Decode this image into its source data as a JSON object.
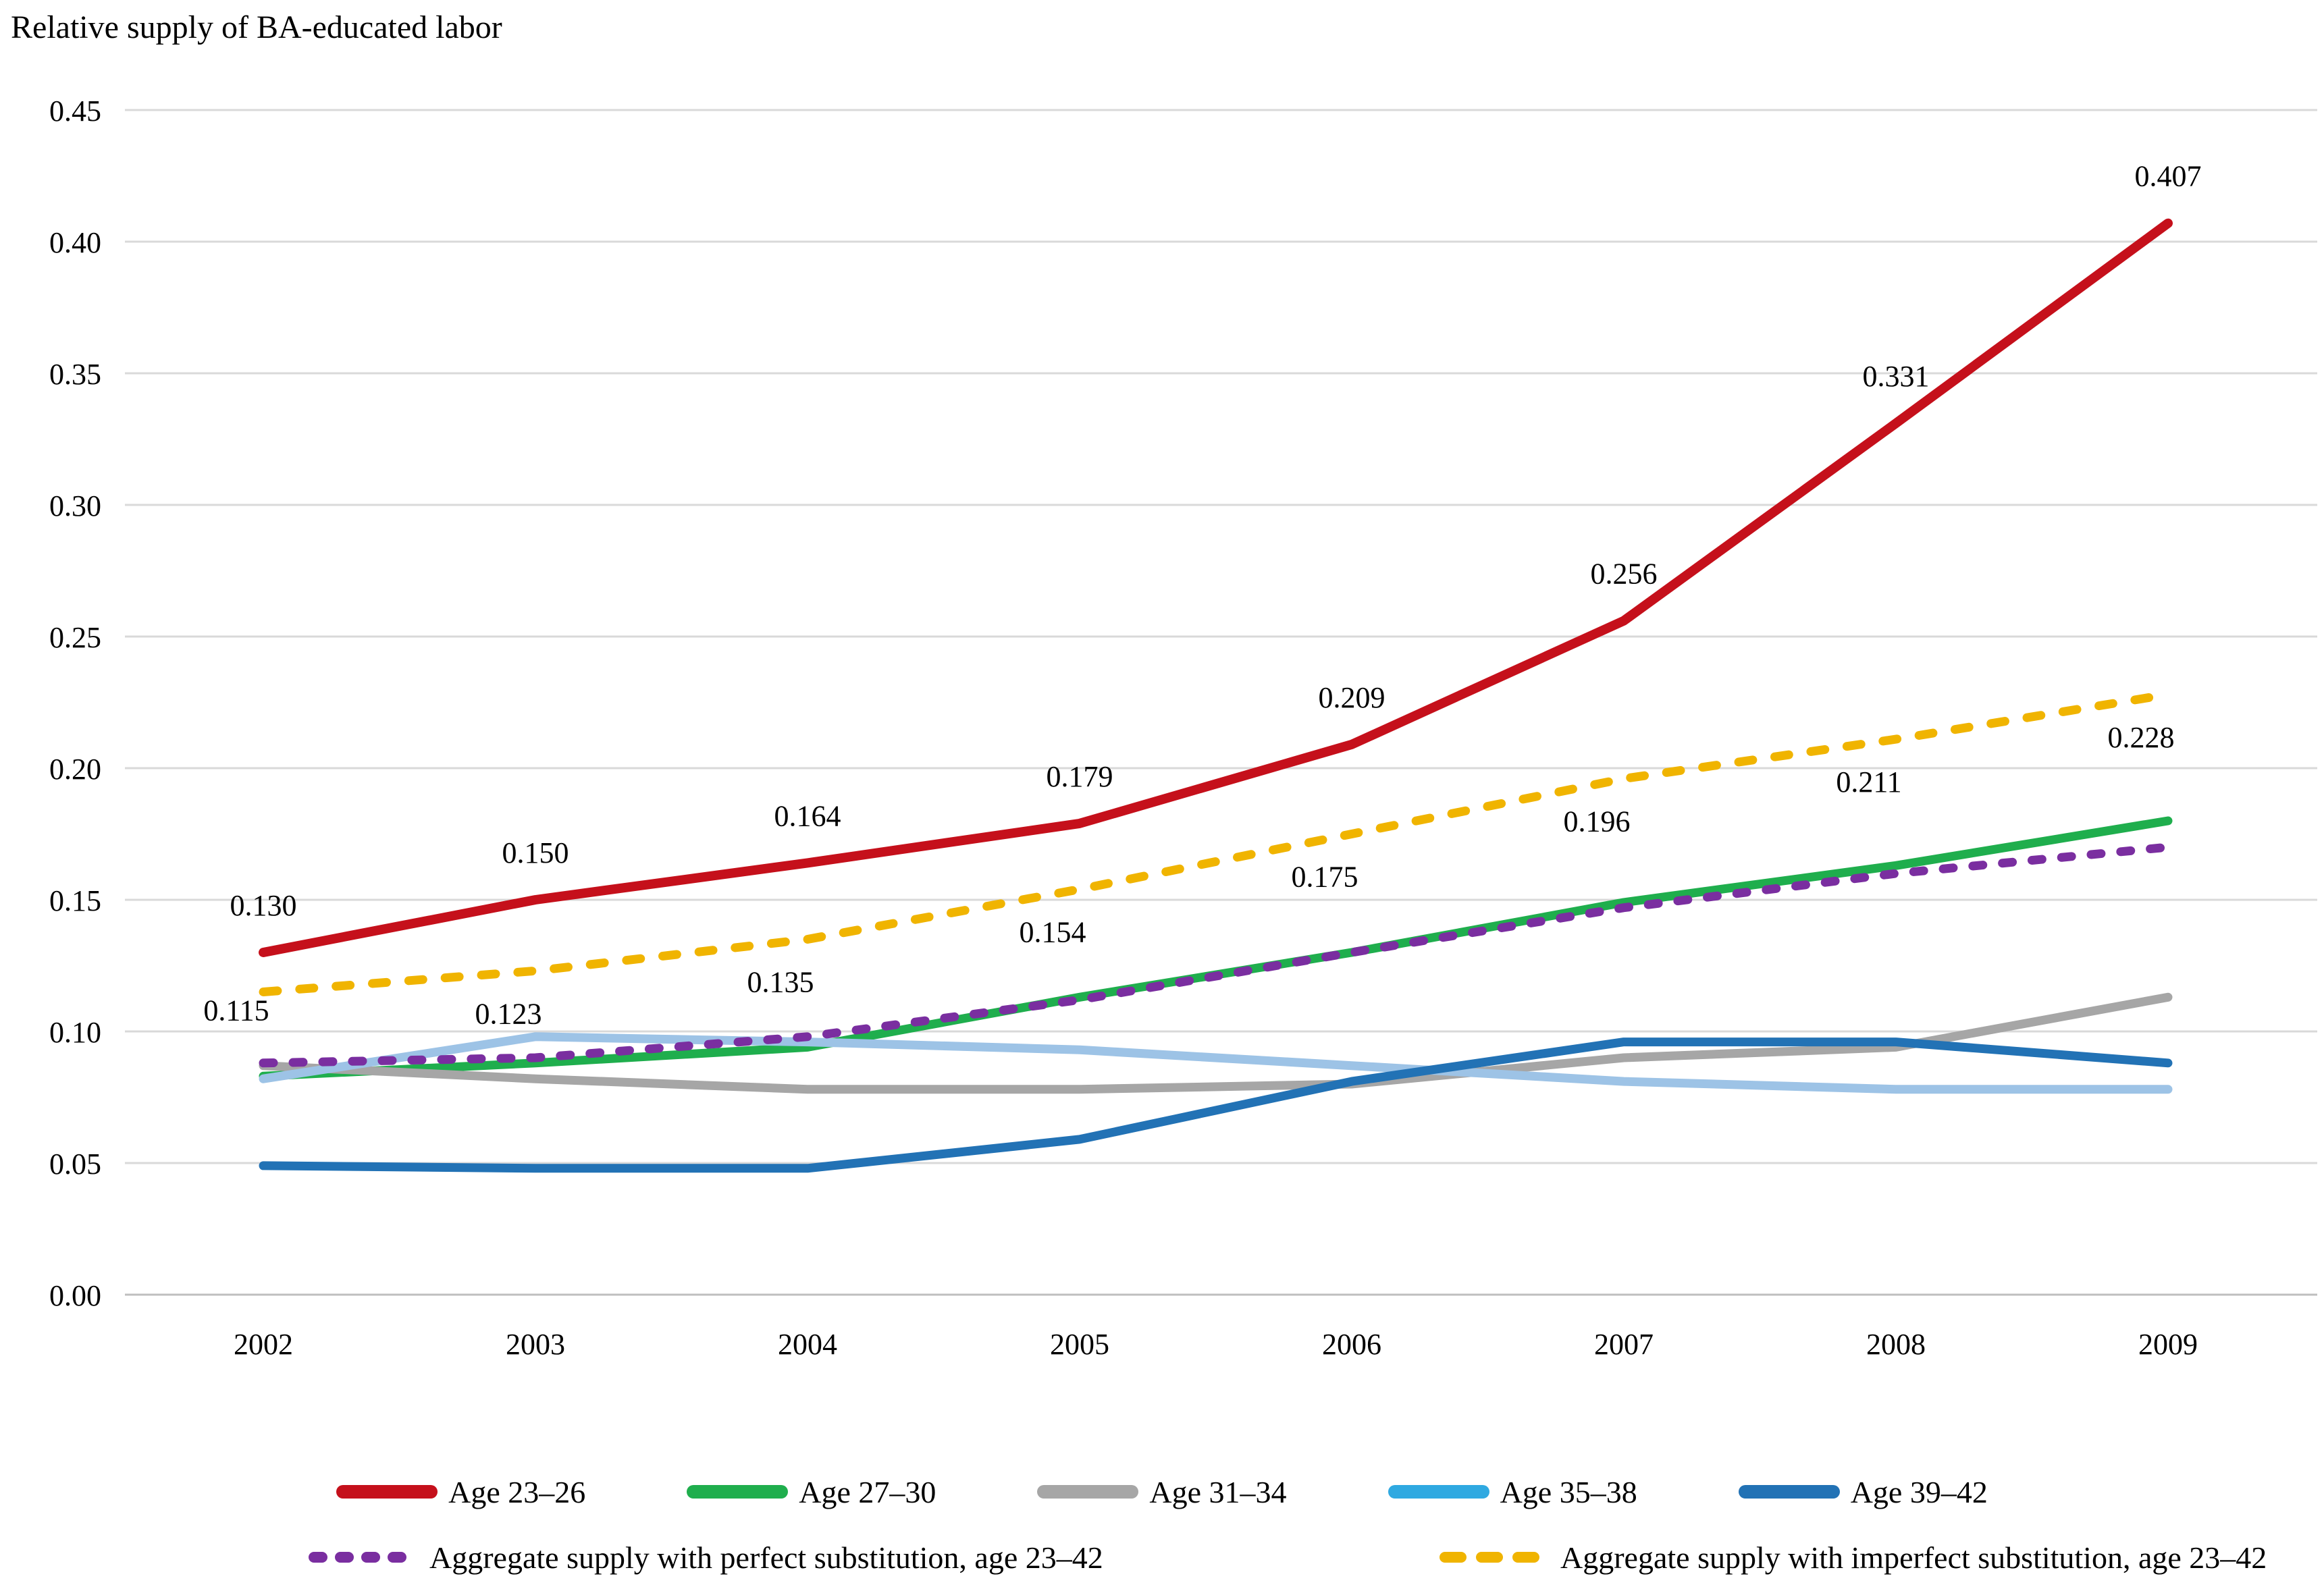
{
  "page": {
    "title": "Relative supply of BA-educated labor"
  },
  "chart_data": {
    "type": "line",
    "title": "Relative supply of BA-educated labor",
    "x": [
      2002,
      2003,
      2004,
      2005,
      2006,
      2007,
      2008,
      2009
    ],
    "categories": [
      "2002",
      "2003",
      "2004",
      "2005",
      "2006",
      "2007",
      "2008",
      "2009"
    ],
    "ylim": [
      0,
      0.45
    ],
    "y_tick_step": 0.05,
    "y_ticks": [
      "0.00",
      "0.05",
      "0.10",
      "0.15",
      "0.20",
      "0.25",
      "0.30",
      "0.35",
      "0.40",
      "0.45"
    ],
    "grid": true,
    "gridline_color": "#D9D9D9",
    "axis_line_color": "#BFBFBF",
    "legend_position": "bottom",
    "series": [
      {
        "name": "Age 23–26",
        "color": "#C5101B",
        "line_style": "solid",
        "values": [
          0.13,
          0.15,
          0.164,
          0.179,
          0.209,
          0.256,
          0.331,
          0.407
        ],
        "data_labels": [
          "0.130",
          "0.150",
          "0.164",
          "0.179",
          "0.209",
          "0.256",
          "0.331",
          "0.407"
        ],
        "label_position": "above"
      },
      {
        "name": "Age 27–30",
        "color": "#1FAE4D",
        "line_style": "solid",
        "values": [
          0.083,
          0.088,
          0.094,
          0.113,
          0.13,
          0.149,
          0.163,
          0.18
        ]
      },
      {
        "name": "Age 31–34",
        "color": "#A6A6A6",
        "line_style": "solid",
        "values": [
          0.087,
          0.082,
          0.078,
          0.078,
          0.08,
          0.09,
          0.094,
          0.113
        ]
      },
      {
        "name": "Age 35–38",
        "color": "#9DC3E6",
        "legend_color": "#2FA9E1",
        "line_style": "solid",
        "values": [
          0.082,
          0.098,
          0.096,
          0.093,
          0.087,
          0.081,
          0.078,
          0.078
        ]
      },
      {
        "name": "Age 39–42",
        "color": "#2272B5",
        "line_style": "solid",
        "values": [
          0.049,
          0.048,
          0.048,
          0.059,
          0.081,
          0.096,
          0.096,
          0.088
        ]
      },
      {
        "name": "Aggregate supply with perfect substitution, age 23–42",
        "color": "#7A2EA0",
        "line_style": "dashed",
        "values": [
          0.088,
          0.09,
          0.098,
          0.112,
          0.13,
          0.147,
          0.16,
          0.17
        ]
      },
      {
        "name": "Aggregate supply with imperfect substitution, age 23–42",
        "color": "#F0B400",
        "line_style": "dashed",
        "values": [
          0.115,
          0.123,
          0.135,
          0.154,
          0.175,
          0.196,
          0.211,
          0.228
        ],
        "data_labels": [
          "0.115",
          "0.123",
          "0.135",
          "0.154",
          "0.175",
          "0.196",
          "0.211",
          "0.228"
        ],
        "label_position": "below"
      }
    ]
  }
}
